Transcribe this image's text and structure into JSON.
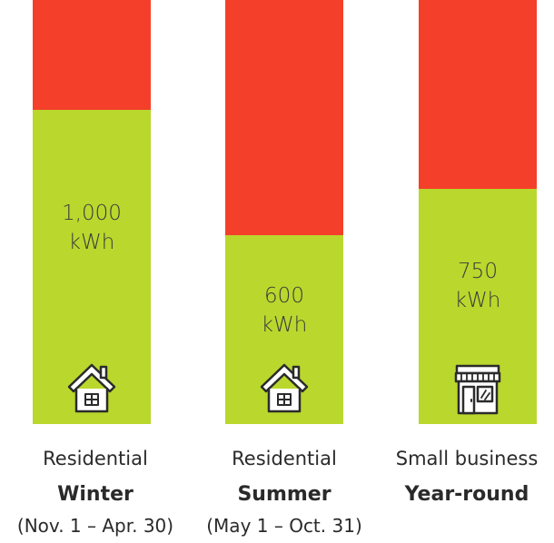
{
  "colors": {
    "used": "#bad72d",
    "remaining": "#f4402a",
    "icon_stroke": "#2b2b2b"
  },
  "chart_data": {
    "type": "bar",
    "stacked": true,
    "categories": [
      "Winter",
      "Summer",
      "Year-round"
    ],
    "ylim": [
      0,
      1350
    ],
    "series": [
      {
        "values": [
          1000,
          600,
          750
        ]
      },
      {
        "values": [
          350,
          750,
          600
        ]
      }
    ]
  },
  "bars": [
    {
      "value_line1": "1,000",
      "value_line2": "kWh",
      "icon": "house-icon",
      "type": "Residential",
      "season": "Winter",
      "dates": "(Nov. 1 – Apr. 30)"
    },
    {
      "value_line1": "600",
      "value_line2": "kWh",
      "icon": "house-icon",
      "type": "Residential",
      "season": "Summer",
      "dates": "(May 1 – Oct. 31)"
    },
    {
      "value_line1": "750",
      "value_line2": "kWh",
      "icon": "storefront-icon",
      "type": "Small business",
      "season": "Year-round",
      "dates": ""
    }
  ]
}
